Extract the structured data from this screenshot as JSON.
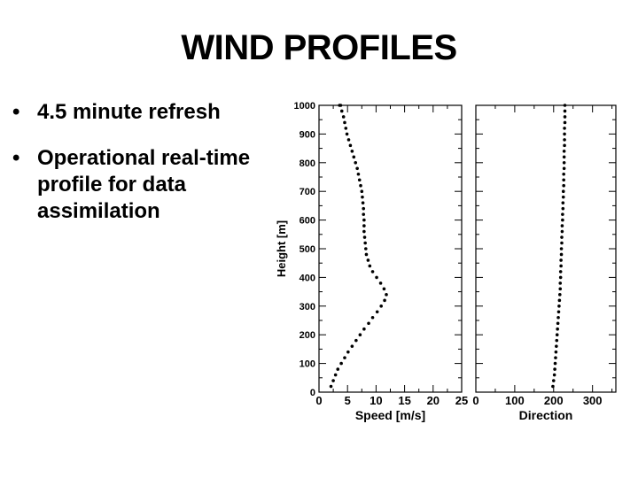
{
  "slide": {
    "title": "WIND PROFILES",
    "bullets": [
      {
        "marker": "•",
        "text": "4.5 minute refresh"
      },
      {
        "marker": "•",
        "text": "Operational real-time profile for data assimilation"
      }
    ]
  },
  "chart_data": [
    {
      "type": "scatter",
      "title": "",
      "xlabel": "Speed [m/s]",
      "ylabel": "Height [m]",
      "xlim": [
        0,
        25
      ],
      "ylim": [
        0,
        1000
      ],
      "xticks": [
        "0",
        "5",
        "10",
        "15",
        "20",
        "25"
      ],
      "yticks": [
        "0",
        "100",
        "200",
        "300",
        "400",
        "500",
        "600",
        "700",
        "800",
        "900",
        "1000"
      ],
      "grid": false,
      "series": [
        {
          "x": [
            2.1,
            2.5,
            2.9,
            3.3,
            3.9,
            4.5,
            5.1,
            5.8,
            6.5,
            7.2,
            7.9,
            8.7,
            9.4,
            10.2,
            10.9,
            11.5,
            11.8,
            11.4,
            10.8,
            10.1,
            9.4,
            8.9,
            8.6,
            8.3,
            8.2,
            8.1,
            8.0,
            7.9,
            7.9,
            7.9,
            7.8,
            7.8,
            7.7,
            7.6,
            7.5,
            7.3,
            7.1,
            6.9,
            6.7,
            6.4,
            6.1,
            5.8,
            5.5,
            5.2,
            4.9,
            4.7,
            4.5,
            4.3,
            4.0,
            3.8,
            3.6
          ],
          "y": [
            20,
            40,
            60,
            80,
            100,
            120,
            140,
            160,
            180,
            200,
            220,
            240,
            260,
            280,
            300,
            320,
            340,
            360,
            380,
            400,
            420,
            440,
            460,
            480,
            500,
            520,
            540,
            560,
            580,
            600,
            620,
            640,
            660,
            680,
            700,
            720,
            740,
            760,
            780,
            800,
            820,
            840,
            860,
            880,
            900,
            920,
            940,
            960,
            980,
            1000,
            1000
          ]
        }
      ]
    },
    {
      "type": "scatter",
      "title": "",
      "xlabel": "Direction",
      "ylabel": "",
      "xlim": [
        0,
        360
      ],
      "ylim": [
        0,
        1000
      ],
      "xticks": [
        "0",
        "100",
        "200",
        "300"
      ],
      "grid": false,
      "series": [
        {
          "x": [
            198,
            200,
            202,
            203,
            204,
            205,
            206,
            207,
            208,
            209,
            210,
            211,
            212,
            213,
            214,
            215,
            216,
            217,
            217,
            218,
            218,
            219,
            219,
            220,
            220,
            221,
            221,
            222,
            222,
            223,
            223,
            224,
            224,
            225,
            225,
            226,
            226,
            226,
            227,
            227,
            227,
            227,
            228,
            228,
            228,
            228,
            229,
            229,
            229,
            229
          ],
          "y": [
            20,
            40,
            60,
            80,
            100,
            120,
            140,
            160,
            180,
            200,
            220,
            240,
            260,
            280,
            300,
            320,
            340,
            360,
            380,
            400,
            420,
            440,
            460,
            480,
            500,
            520,
            540,
            560,
            580,
            600,
            620,
            640,
            660,
            680,
            700,
            720,
            740,
            760,
            780,
            800,
            820,
            840,
            860,
            880,
            900,
            920,
            940,
            960,
            980,
            1000
          ]
        }
      ]
    }
  ]
}
